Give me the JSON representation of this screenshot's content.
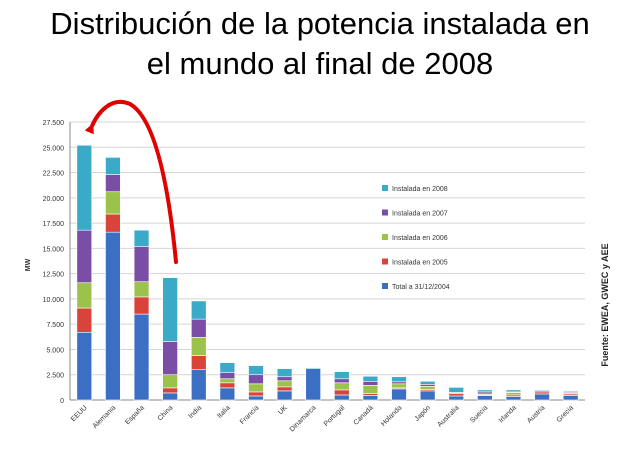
{
  "title_line1": "Distribución de la potencia instalada en",
  "title_line2": "el mundo al final de 2008",
  "source_note": "Fuente: EWEA, GWEC y AEE",
  "arrow_color": "#e00000",
  "chart_data": {
    "type": "bar",
    "stacked": true,
    "ylabel": "MW",
    "ylim": [
      0,
      27500
    ],
    "yticks": [
      0,
      2500,
      5000,
      7500,
      10000,
      12500,
      15000,
      17500,
      20000,
      22500,
      25000,
      27500
    ],
    "ytick_labels": [
      "0",
      "2.500",
      "5.000",
      "7.500",
      "10.000",
      "12.500",
      "15.000",
      "17.500",
      "20.000",
      "22.500",
      "25.000",
      "27.500"
    ],
    "grid": true,
    "legend_position": "right",
    "categories": [
      "EEUU",
      "Alemania",
      "España",
      "China",
      "India",
      "Italia",
      "Francia",
      "UK",
      "Dinamarca",
      "Portugal",
      "Canadá",
      "Holanda",
      "Japón",
      "Australia",
      "Suecia",
      "Irlanda",
      "Austria",
      "Grecia"
    ],
    "series": [
      {
        "name": "Total a 31/12/2004",
        "color": "#3a6fc4",
        "values": [
          6700,
          16600,
          8500,
          700,
          3000,
          1200,
          400,
          900,
          3100,
          500,
          450,
          1100,
          900,
          400,
          450,
          350,
          600,
          450
        ]
      },
      {
        "name": "Instalada en 2005",
        "color": "#d9443a",
        "values": [
          2400,
          1800,
          1700,
          500,
          1400,
          500,
          400,
          400,
          0,
          500,
          200,
          100,
          150,
          250,
          50,
          150,
          200,
          150
        ]
      },
      {
        "name": "Instalada en 2006",
        "color": "#9bc24a",
        "values": [
          2500,
          2200,
          1500,
          1300,
          1800,
          400,
          800,
          600,
          0,
          700,
          800,
          400,
          300,
          100,
          100,
          250,
          0,
          100
        ]
      },
      {
        "name": "Instalada en 2007",
        "color": "#7a4ea6",
        "values": [
          5200,
          1700,
          3500,
          3300,
          1800,
          600,
          900,
          400,
          0,
          400,
          400,
          200,
          200,
          0,
          200,
          50,
          0,
          100
        ]
      },
      {
        "name": "Instalada en 2008",
        "color": "#3aaac8",
        "values": [
          8400,
          1700,
          1600,
          6300,
          1800,
          1000,
          900,
          800,
          100,
          700,
          500,
          500,
          300,
          500,
          200,
          200,
          150,
          100
        ]
      }
    ]
  }
}
